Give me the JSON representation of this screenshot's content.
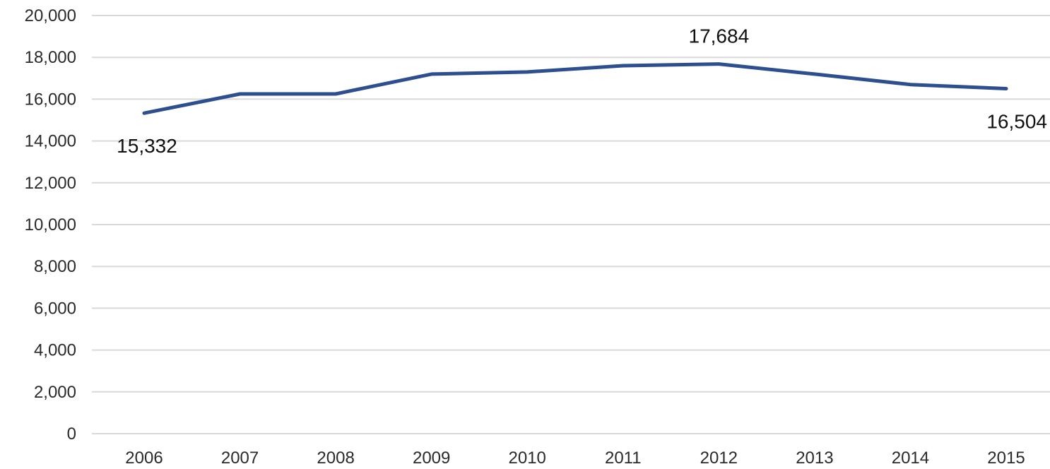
{
  "chart_data": {
    "type": "line",
    "title": "",
    "xlabel": "",
    "ylabel": "",
    "categories": [
      "2006",
      "2007",
      "2008",
      "2009",
      "2010",
      "2011",
      "2012",
      "2013",
      "2014",
      "2015"
    ],
    "series": [
      {
        "values": [
          15332,
          16250,
          16250,
          17200,
          17300,
          17600,
          17684,
          17200,
          16700,
          16504
        ],
        "color": "#2e4f8f"
      }
    ],
    "ylim": [
      0,
      20000
    ],
    "yticks": [
      0,
      2000,
      4000,
      6000,
      8000,
      10000,
      12000,
      14000,
      16000,
      18000,
      20000
    ],
    "ytick_labels": [
      "0",
      "2,000",
      "4,000",
      "6,000",
      "8,000",
      "10,000",
      "12,000",
      "14,000",
      "16,000",
      "18,000",
      "20,000"
    ],
    "grid": true,
    "legend": "none",
    "annotations": [
      {
        "category": "2006",
        "text": "15,332",
        "placement": "below"
      },
      {
        "category": "2012",
        "text": "17,684",
        "placement": "above"
      },
      {
        "category": "2015",
        "text": "16,504",
        "placement": "below"
      }
    ]
  }
}
